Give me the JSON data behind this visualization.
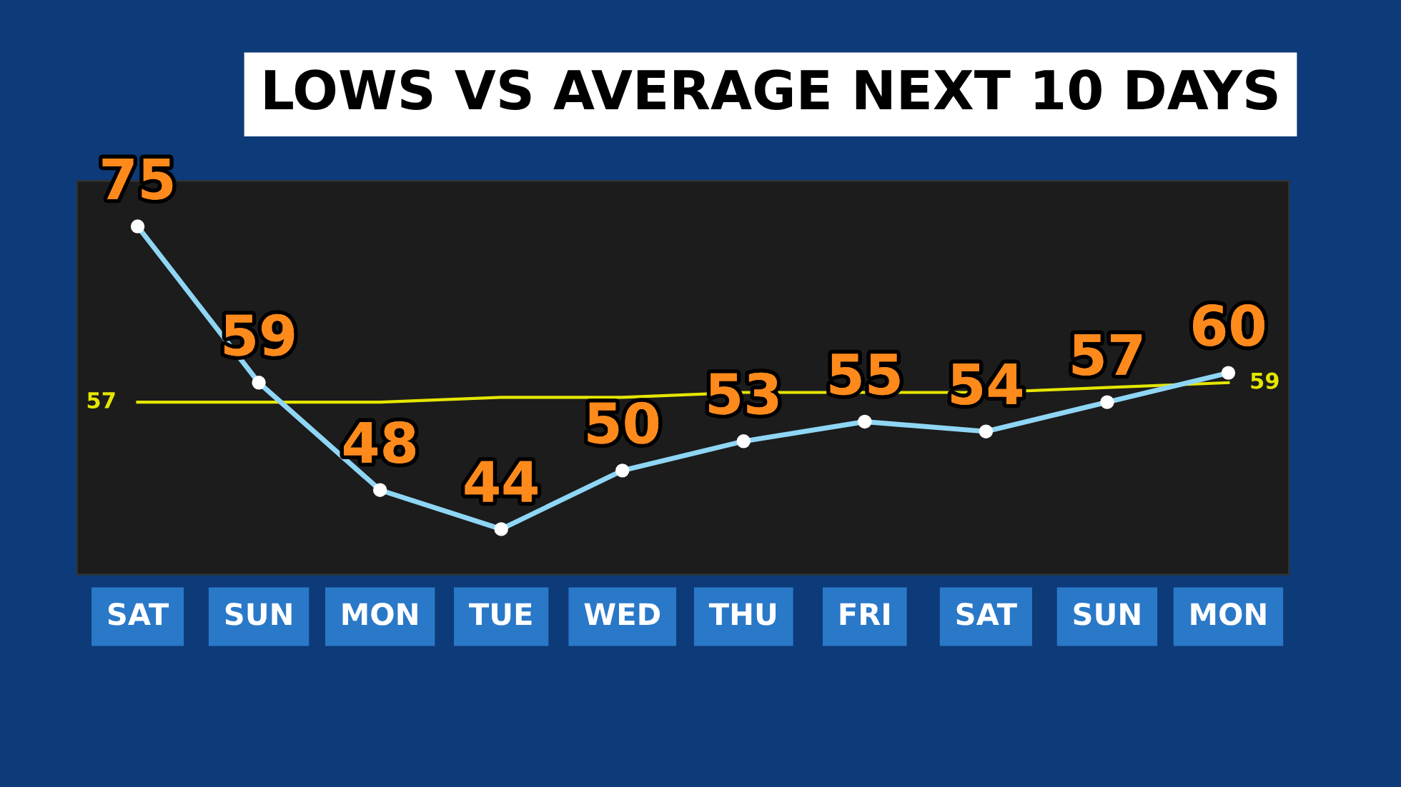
{
  "chart_data": {
    "type": "line",
    "title": "LOWS VS AVERAGE NEXT 10 DAYS",
    "categories": [
      "SAT",
      "SUN",
      "MON",
      "TUE",
      "WED",
      "THU",
      "FRI",
      "SAT",
      "SUN",
      "MON"
    ],
    "series": [
      {
        "color": "#8fd6f5",
        "values": [
          75,
          59,
          48,
          44,
          50,
          53,
          55,
          54,
          57,
          60
        ],
        "value_labels": [
          "75",
          "59",
          "48",
          "44",
          "50",
          "53",
          "55",
          "54",
          "57",
          "60"
        ],
        "marker": "circle"
      },
      {
        "color": "#e6e600",
        "values": [
          57,
          57,
          57,
          57.5,
          57.5,
          58,
          58,
          58,
          58.5,
          59
        ],
        "value_labels": [
          "57",
          null,
          null,
          null,
          null,
          null,
          null,
          null,
          null,
          "59"
        ],
        "marker": "none"
      }
    ],
    "grid": false,
    "legend": false
  }
}
